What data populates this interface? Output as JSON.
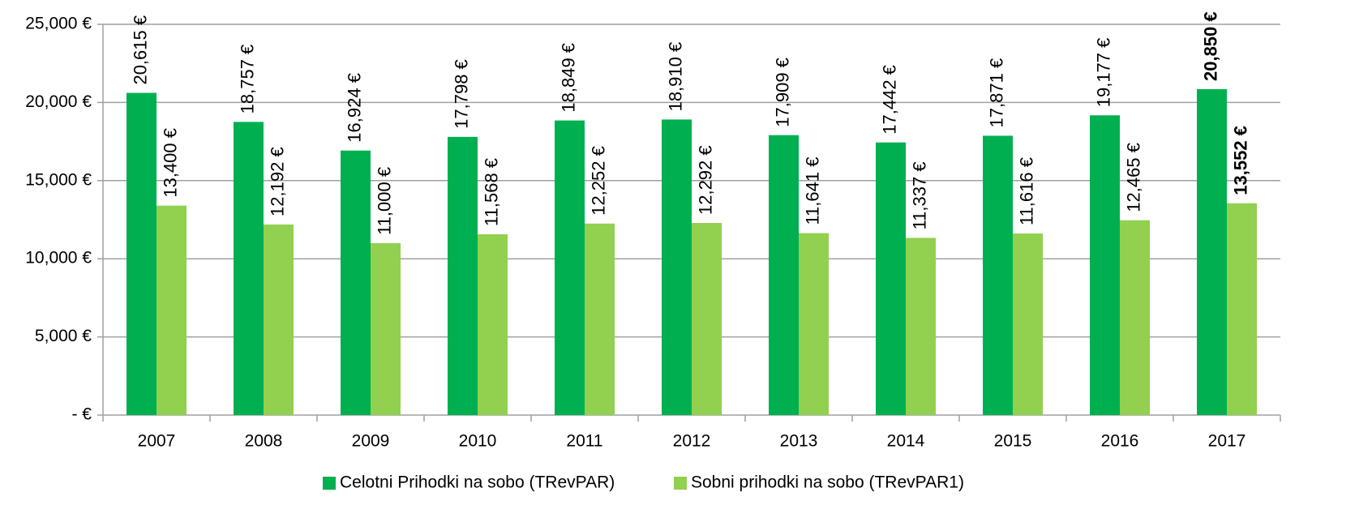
{
  "chart_data": {
    "type": "bar",
    "categories": [
      "2007",
      "2008",
      "2009",
      "2010",
      "2011",
      "2012",
      "2013",
      "2014",
      "2015",
      "2016",
      "2017"
    ],
    "series": [
      {
        "name": "Celotni Prihodki na sobo (TRevPAR)",
        "color": "#00b050",
        "values": [
          20615,
          18757,
          16924,
          17798,
          18849,
          18910,
          17909,
          17442,
          17871,
          19177,
          20850
        ],
        "value_labels": [
          "20,615 €",
          "18,757 €",
          "16,924 €",
          "17,798 €",
          "18,849 €",
          "18,910 €",
          "17,909 €",
          "17,442 €",
          "17,871 €",
          "19,177 €",
          "20,850 €"
        ]
      },
      {
        "name": "Sobni prihodki na sobo (TRevPAR1)",
        "color": "#92d050",
        "values": [
          13400,
          12192,
          11000,
          11568,
          12252,
          12292,
          11641,
          11337,
          11616,
          12465,
          13552
        ],
        "value_labels": [
          "13,400 €",
          "12,192 €",
          "11,000 €",
          "11,568 €",
          "12,252 €",
          "12,292 €",
          "11,641 €",
          "11,337 €",
          "11,616 €",
          "12,465 €",
          "13,552 €"
        ]
      }
    ],
    "highlight": "2017",
    "ylim": [
      0,
      25000
    ],
    "yticks": [
      {
        "value": 0,
        "label": "-  €"
      },
      {
        "value": 5000,
        "label": "5,000 €"
      },
      {
        "value": 10000,
        "label": "10,000 €"
      },
      {
        "value": 15000,
        "label": "15,000 €"
      },
      {
        "value": 20000,
        "label": "20,000 €"
      },
      {
        "value": 25000,
        "label": "25,000 €"
      }
    ],
    "grid": true,
    "legend": "bottom"
  }
}
